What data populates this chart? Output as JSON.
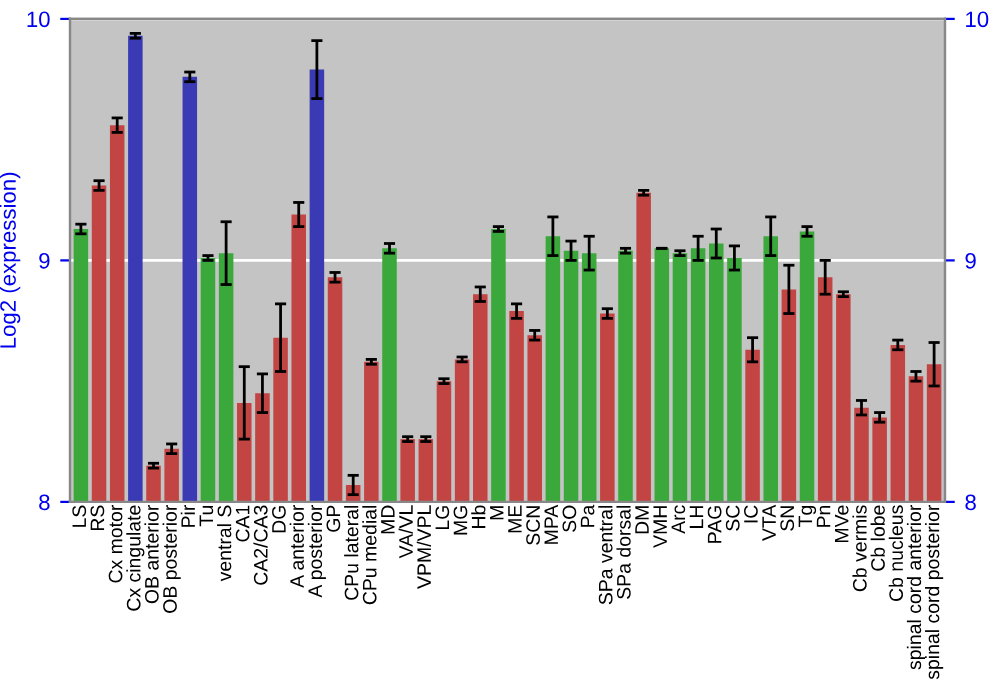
{
  "chart_data": {
    "type": "bar",
    "ylabel": "Log2 (expression)",
    "categories": [
      "LS",
      "RS",
      "Cx motor",
      "Cx cingulate",
      "OB anterior",
      "OB posterior",
      "Pir",
      "Tu",
      "ventral S",
      "CA1",
      "CA2/CA3",
      "DG",
      "A anterior",
      "A posterior",
      "GP",
      "CPu lateral",
      "CPu medial",
      "MD",
      "VA/VL",
      "VPM/VPL",
      "LG",
      "MG",
      "Hb",
      "M",
      "ME",
      "SCN",
      "MPA",
      "SO",
      "Pa",
      "SPa ventral",
      "SPa dorsal",
      "DM",
      "VMH",
      "Arc",
      "LH",
      "PAG",
      "SC",
      "IC",
      "VTA",
      "SN",
      "Tg",
      "Pn",
      "MVe",
      "Cb vermis",
      "Cb lobe",
      "Cb nucleus",
      "spinal cord anterior",
      "spinal cord posterior"
    ],
    "values": [
      9.13,
      9.31,
      9.56,
      9.93,
      8.15,
      8.22,
      9.76,
      9.01,
      9.03,
      8.41,
      8.45,
      8.68,
      9.19,
      9.79,
      8.93,
      8.07,
      8.58,
      9.05,
      8.26,
      8.26,
      8.5,
      8.59,
      8.86,
      9.13,
      8.79,
      8.69,
      9.1,
      9.04,
      9.03,
      8.78,
      9.04,
      9.28,
      9.05,
      9.03,
      9.05,
      9.07,
      9.01,
      8.63,
      9.1,
      8.88,
      9.12,
      8.93,
      8.86,
      8.39,
      8.35,
      8.65,
      8.52,
      8.57
    ],
    "errors": [
      0.02,
      0.02,
      0.03,
      0.01,
      0.01,
      0.02,
      0.02,
      0.01,
      0.13,
      0.15,
      0.08,
      0.14,
      0.05,
      0.12,
      0.02,
      0.04,
      0.01,
      0.02,
      0.01,
      0.01,
      0.01,
      0.01,
      0.03,
      0.01,
      0.03,
      0.02,
      0.08,
      0.04,
      0.07,
      0.02,
      0.01,
      0.01,
      0.0,
      0.01,
      0.05,
      0.06,
      0.05,
      0.05,
      0.08,
      0.1,
      0.02,
      0.07,
      0.01,
      0.03,
      0.02,
      0.02,
      0.02,
      0.09
    ],
    "colors": [
      "#3aa83a",
      "#c24443",
      "#c24443",
      "#3a3ab4",
      "#c24443",
      "#c24443",
      "#3a3ab4",
      "#3aa83a",
      "#3aa83a",
      "#c24443",
      "#c24443",
      "#c24443",
      "#c24443",
      "#3a3ab4",
      "#c24443",
      "#c24443",
      "#c24443",
      "#3aa83a",
      "#c24443",
      "#c24443",
      "#c24443",
      "#c24443",
      "#c24443",
      "#3aa83a",
      "#c24443",
      "#c24443",
      "#3aa83a",
      "#3aa83a",
      "#3aa83a",
      "#c24443",
      "#3aa83a",
      "#c24443",
      "#3aa83a",
      "#3aa83a",
      "#3aa83a",
      "#3aa83a",
      "#3aa83a",
      "#c24443",
      "#3aa83a",
      "#c24443",
      "#3aa83a",
      "#c24443",
      "#c24443",
      "#c24443",
      "#c24443",
      "#c24443",
      "#c24443",
      "#c24443"
    ],
    "ylim": [
      8,
      10
    ],
    "yticks": [
      8,
      9,
      10
    ],
    "y2lim": [
      8,
      10
    ],
    "y2ticks": [
      8,
      9,
      10
    ],
    "grid": "y"
  }
}
